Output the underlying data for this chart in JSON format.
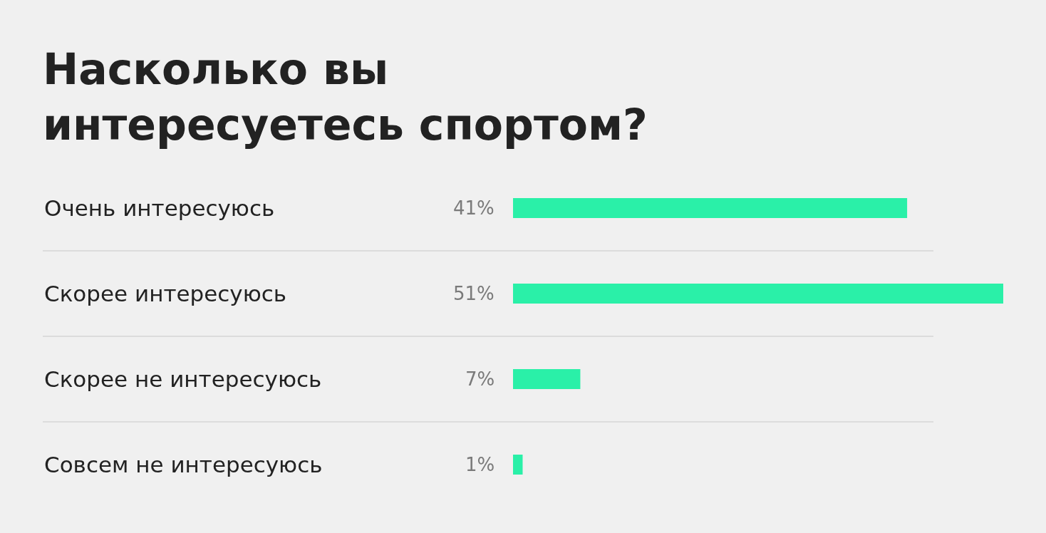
{
  "chart_data": {
    "type": "bar",
    "orientation": "horizontal",
    "title": "Насколько вы интересуетесь спортом?",
    "categories": [
      "Очень интересуюсь",
      "Скорее интересуюсь",
      "Скорее не интересуюсь",
      "Совсем не интересуюсь"
    ],
    "values": [
      41,
      51,
      7,
      1
    ],
    "value_labels": [
      "41%",
      "51%",
      "7%",
      "1%"
    ],
    "color": "#2af0a8"
  }
}
